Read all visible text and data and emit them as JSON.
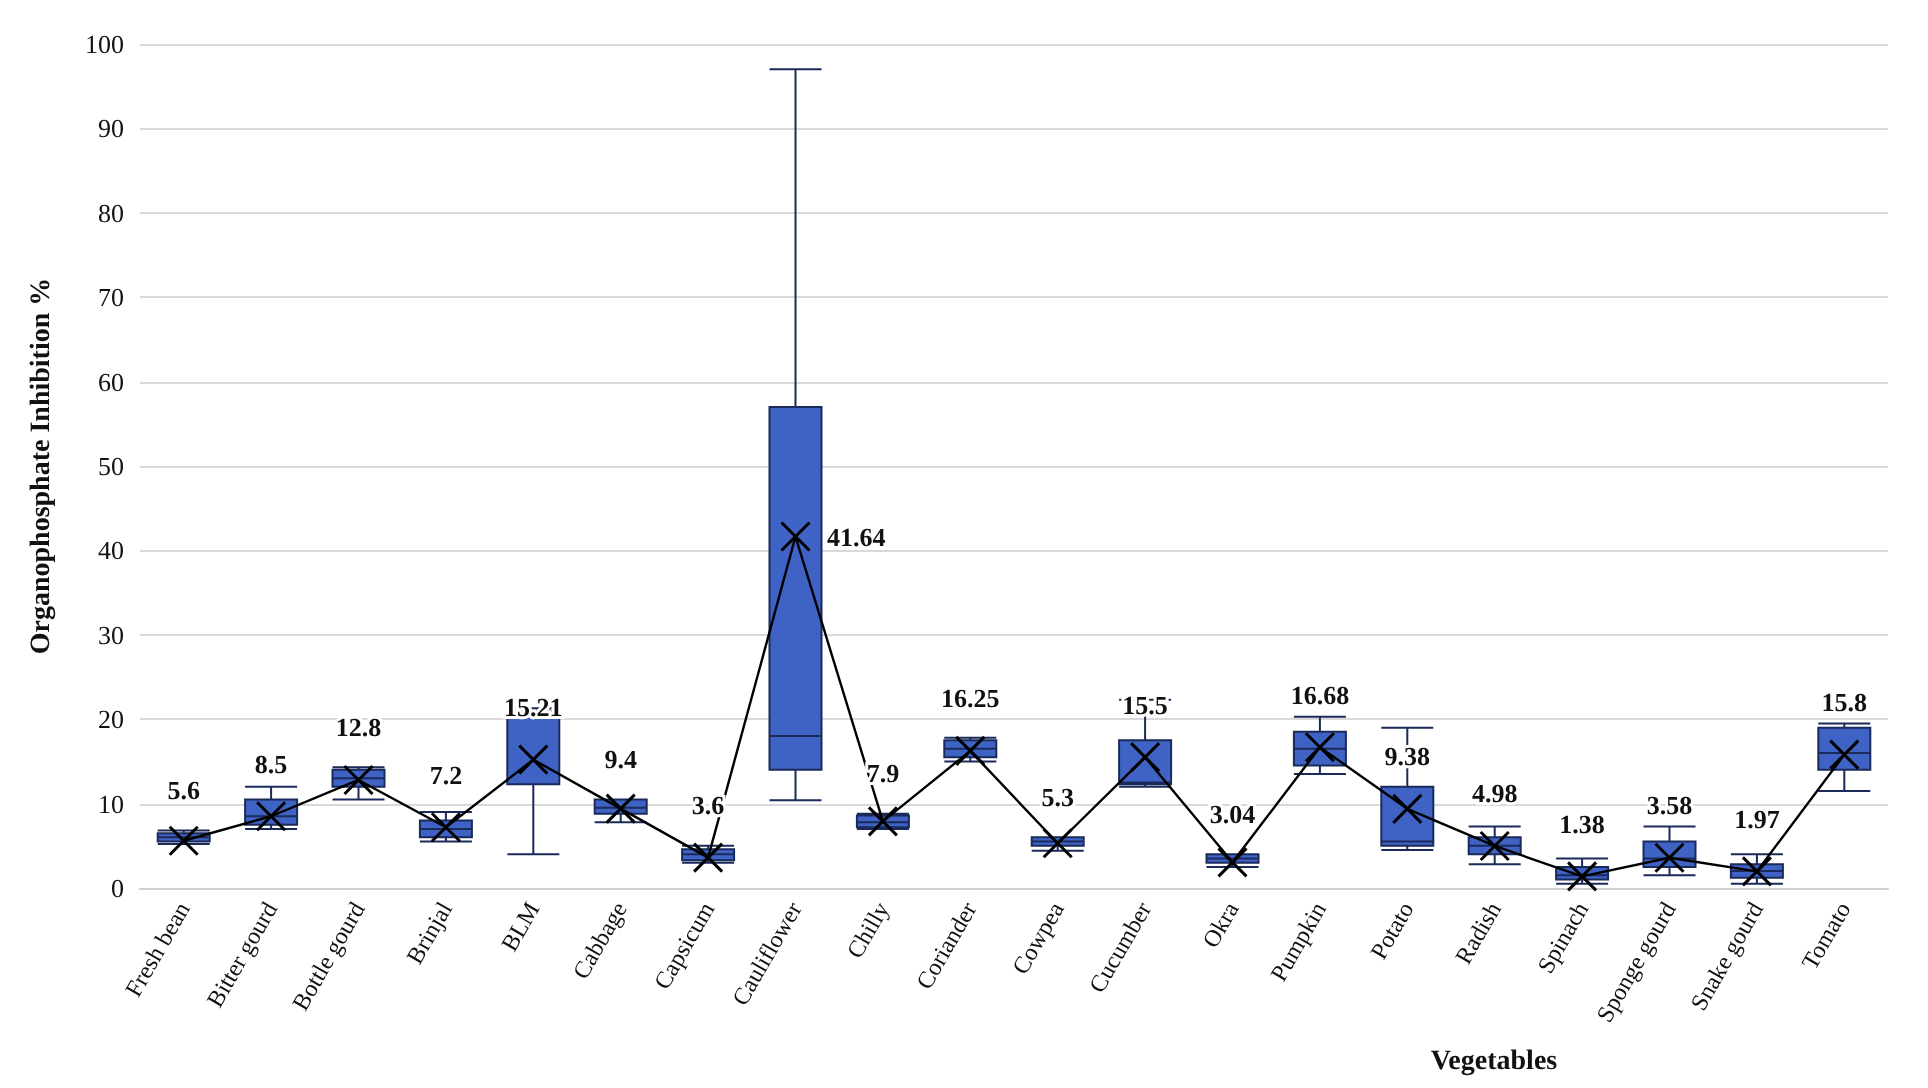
{
  "chart_data": {
    "type": "box",
    "xlabel": "Vegetables",
    "ylabel": "Organophosphate Inhibition %",
    "categories": [
      "Fresh bean",
      "Bitter gourd",
      "Bottle gourd",
      "Brinjal",
      "BLM",
      "Cabbage",
      "Capsicum",
      "Cauliflower",
      "Chilly",
      "Coriander",
      "Cowpea",
      "Cucumber",
      "Okra",
      "Pumpkin",
      "Potato",
      "Radish",
      "Spinach",
      "Sponge gourd",
      "Snake gourd",
      "Tomato"
    ],
    "series": [
      {
        "color": "#3f63c4",
        "boxes": [
          {
            "low": 5.2,
            "q1": 5.5,
            "median": 6,
            "q3": 6.5,
            "high": 6.8
          },
          {
            "low": 7,
            "q1": 7.5,
            "median": 8.5,
            "q3": 10.5,
            "high": 12
          },
          {
            "low": 10.5,
            "q1": 12,
            "median": 13,
            "q3": 14,
            "high": 14.3
          },
          {
            "low": 5.5,
            "q1": 6,
            "median": 7,
            "q3": 8,
            "high": 9
          },
          {
            "low": 4,
            "q1": 12.3,
            "median": 20.5,
            "q3": 21,
            "high": 21.3
          },
          {
            "low": 7.8,
            "q1": 8.8,
            "median": 9.5,
            "q3": 10.5,
            "high": 10.5
          },
          {
            "low": 3,
            "q1": 3.3,
            "median": 4,
            "q3": 4.6,
            "high": 5
          },
          {
            "low": 10.4,
            "q1": 14,
            "median": 18,
            "q3": 57,
            "high": 97
          },
          {
            "low": 7,
            "q1": 7.2,
            "median": 7.8,
            "q3": 8.6,
            "high": 8.8
          },
          {
            "low": 15,
            "q1": 15.5,
            "median": 16.5,
            "q3": 17.5,
            "high": 17.8
          },
          {
            "low": 4.4,
            "q1": 5,
            "median": 5.5,
            "q3": 6,
            "high": 6
          },
          {
            "low": 12,
            "q1": 12.3,
            "median": 12.5,
            "q3": 17.5,
            "high": 22.3
          },
          {
            "low": 2.5,
            "q1": 3,
            "median": 3.5,
            "q3": 4,
            "high": 4
          },
          {
            "low": 13.5,
            "q1": 14.5,
            "median": 16.5,
            "q3": 18.5,
            "high": 20.3
          },
          {
            "low": 4.5,
            "q1": 5,
            "median": 5.5,
            "q3": 12,
            "high": 19
          },
          {
            "low": 2.8,
            "q1": 4,
            "median": 5,
            "q3": 6,
            "high": 7.3
          },
          {
            "low": 0.5,
            "q1": 1,
            "median": 1.5,
            "q3": 2.5,
            "high": 3.5
          },
          {
            "low": 1.5,
            "q1": 2.5,
            "median": 3.5,
            "q3": 5.5,
            "high": 7.3
          },
          {
            "low": 0.5,
            "q1": 1.2,
            "median": 2,
            "q3": 2.8,
            "high": 4
          },
          {
            "low": 11.5,
            "q1": 14,
            "median": 16,
            "q3": 19,
            "high": 19.5
          }
        ]
      },
      {
        "type": "line",
        "color": "#000000",
        "marker": "cross",
        "values": [
          5.6,
          8.5,
          12.8,
          7.2,
          15.21,
          9.4,
          3.6,
          41.64,
          7.9,
          16.25,
          5.3,
          15.5,
          3.04,
          16.68,
          9.38,
          4.98,
          1.38,
          3.58,
          1.97,
          15.8
        ],
        "value_labels": [
          "5.6",
          "8.5",
          "12.8",
          "7.2",
          "15.21",
          "9.4",
          "3.6",
          "41.64",
          "7.9",
          "16.25",
          "5.3",
          "15.5",
          "3.04",
          "16.68",
          "9.38",
          "4.98",
          "1.38",
          "3.58",
          "1.97",
          "15.8"
        ]
      }
    ],
    "ylim": [
      0,
      100
    ],
    "yticks": [
      0,
      10,
      20,
      30,
      40,
      50,
      60,
      70,
      80,
      90,
      100
    ],
    "grid": "y"
  }
}
